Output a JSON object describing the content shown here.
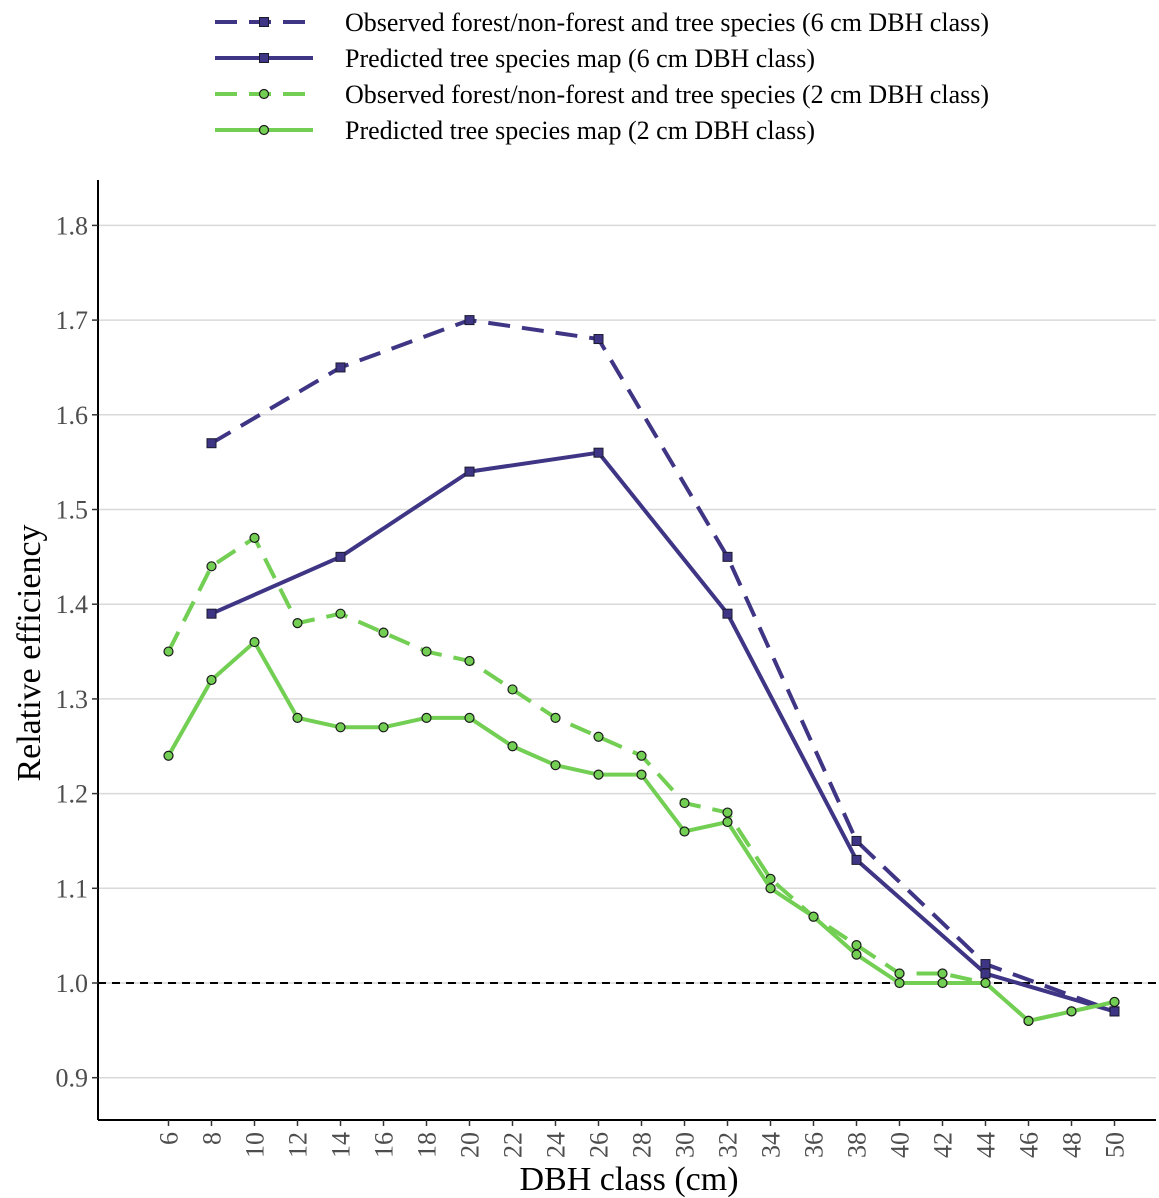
{
  "chart_data": {
    "type": "line",
    "xlabel": "DBH class (cm)",
    "ylabel": "Relative efficiency",
    "x": [
      6,
      8,
      10,
      12,
      14,
      16,
      18,
      20,
      22,
      24,
      26,
      28,
      30,
      32,
      34,
      36,
      38,
      40,
      42,
      44,
      46,
      48,
      50
    ],
    "x_tick_labels": [
      "6",
      "8",
      "10",
      "12",
      "14",
      "16",
      "18",
      "20",
      "22",
      "24",
      "26",
      "28",
      "30",
      "32",
      "34",
      "36",
      "38",
      "40",
      "42",
      "44",
      "46",
      "48",
      "50"
    ],
    "ylim": [
      0.865,
      1.845
    ],
    "y_ticks": [
      0.9,
      1.0,
      1.1,
      1.2,
      1.3,
      1.4,
      1.5,
      1.6,
      1.7,
      1.8
    ],
    "y_tick_labels": [
      "0.9",
      "1.0",
      "1.1",
      "1.2",
      "1.3",
      "1.4",
      "1.5",
      "1.6",
      "1.7",
      "1.8"
    ],
    "reference_line": {
      "y": 1.0,
      "style": "dashed",
      "color": "#000000"
    },
    "grid": "horizontal",
    "legend_position": "top",
    "series": [
      {
        "name": "Observed forest/non-forest and tree species (6 cm DBH class)",
        "color": "#3f3585",
        "dash": true,
        "marker": "square",
        "x": [
          8,
          14,
          20,
          26,
          32,
          38,
          44,
          50
        ],
        "y": [
          1.57,
          1.65,
          1.7,
          1.68,
          1.45,
          1.15,
          1.02,
          0.97
        ]
      },
      {
        "name": "Predicted tree species map (6 cm DBH class)",
        "color": "#3f3585",
        "dash": false,
        "marker": "square",
        "x": [
          8,
          14,
          20,
          26,
          32,
          38,
          44,
          50
        ],
        "y": [
          1.39,
          1.45,
          1.54,
          1.56,
          1.39,
          1.13,
          1.01,
          0.97
        ]
      },
      {
        "name": "Observed forest/non-forest and tree species (2 cm DBH class)",
        "color": "#72cf53",
        "dash": true,
        "marker": "circle",
        "x": [
          6,
          8,
          10,
          12,
          14,
          16,
          18,
          20,
          22,
          24,
          26,
          28,
          30,
          32,
          34,
          36,
          38,
          40,
          42,
          44,
          46,
          48,
          50
        ],
        "y": [
          1.35,
          1.44,
          1.47,
          1.38,
          1.39,
          1.37,
          1.35,
          1.34,
          1.31,
          1.28,
          1.26,
          1.24,
          1.19,
          1.18,
          1.11,
          1.07,
          1.04,
          1.01,
          1.01,
          1.0,
          0.96,
          0.97,
          0.98
        ]
      },
      {
        "name": "Predicted tree species map (2 cm DBH class)",
        "color": "#72cf53",
        "dash": false,
        "marker": "circle",
        "x": [
          6,
          8,
          10,
          12,
          14,
          16,
          18,
          20,
          22,
          24,
          26,
          28,
          30,
          32,
          34,
          36,
          38,
          40,
          42,
          44,
          46,
          48,
          50
        ],
        "y": [
          1.24,
          1.32,
          1.36,
          1.28,
          1.27,
          1.27,
          1.28,
          1.28,
          1.25,
          1.23,
          1.22,
          1.22,
          1.16,
          1.17,
          1.1,
          1.07,
          1.03,
          1.0,
          1.0,
          1.0,
          0.96,
          0.97,
          0.98
        ]
      }
    ]
  }
}
